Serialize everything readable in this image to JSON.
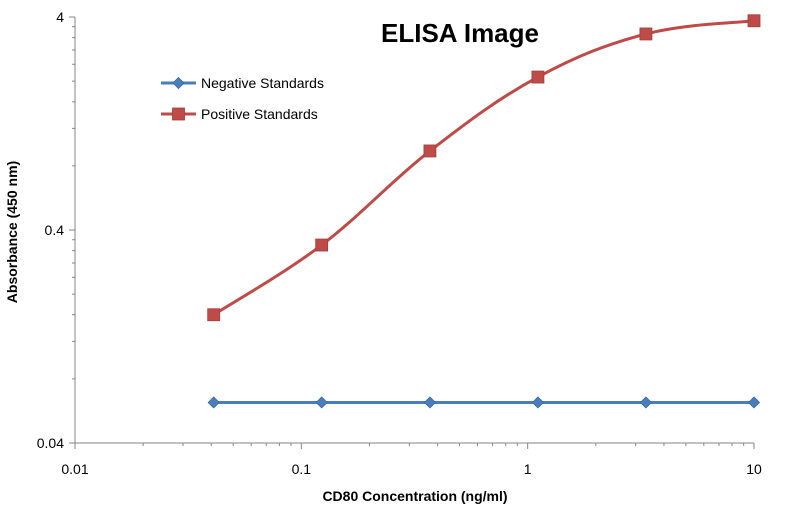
{
  "chart_data": {
    "type": "line",
    "title": "ELISA Image",
    "xlabel": "CD80 Concentration (ng/ml)",
    "ylabel": "Absorbance (450 nm)",
    "x_scale": "log",
    "y_scale": "log",
    "xlim": [
      0.01,
      10
    ],
    "ylim": [
      0.04,
      4
    ],
    "x_ticks": [
      0.01,
      0.1,
      1,
      10
    ],
    "x_tick_labels": [
      "0.01",
      "0.1",
      "1",
      "10"
    ],
    "y_ticks": [
      0.04,
      0.4,
      4
    ],
    "y_tick_labels": [
      "0.04",
      "0.4",
      "4"
    ],
    "grid": false,
    "legend_position": "top-left",
    "series": [
      {
        "name": "Negative Standards",
        "color": "#4a7ebb",
        "marker": "diamond",
        "x": [
          0.041,
          0.123,
          0.37,
          1.11,
          3.33,
          10
        ],
        "y": [
          0.062,
          0.062,
          0.062,
          0.062,
          0.062,
          0.062
        ]
      },
      {
        "name": "Positive Standards",
        "color": "#be4b48",
        "marker": "square",
        "x": [
          0.041,
          0.123,
          0.37,
          1.11,
          3.33,
          10
        ],
        "y": [
          0.16,
          0.34,
          0.94,
          2.09,
          3.33,
          3.84
        ]
      }
    ]
  }
}
